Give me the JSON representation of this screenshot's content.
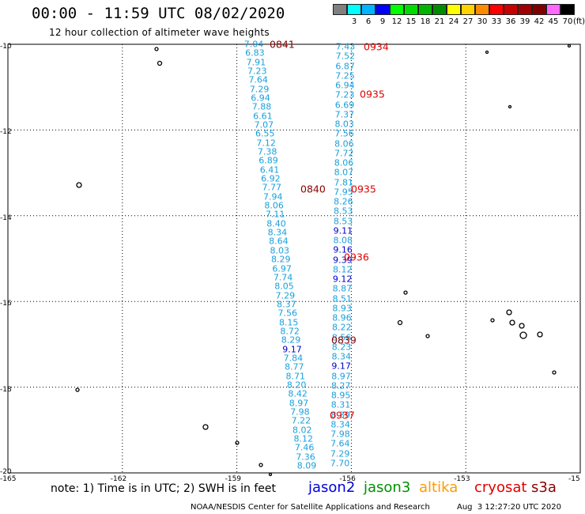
{
  "header": {
    "title": "00:00 - 11:59 UTC 08/02/2020",
    "subtitle": "12 hour collection of altimeter wave heights"
  },
  "color_scale": {
    "unit": "(ft)",
    "bins": [
      {
        "label": "",
        "color": "#808080"
      },
      {
        "label": "3",
        "color": "#00ffff"
      },
      {
        "label": "6",
        "color": "#00b4ff"
      },
      {
        "label": "9",
        "color": "#0000ff"
      },
      {
        "label": "12",
        "color": "#00ff00"
      },
      {
        "label": "15",
        "color": "#00dc00"
      },
      {
        "label": "18",
        "color": "#00b400"
      },
      {
        "label": "21",
        "color": "#008c00"
      },
      {
        "label": "24",
        "color": "#ffff00"
      },
      {
        "label": "27",
        "color": "#ffd200"
      },
      {
        "label": "30",
        "color": "#ff8c00"
      },
      {
        "label": "33",
        "color": "#ff0000"
      },
      {
        "label": "36",
        "color": "#c80000"
      },
      {
        "label": "39",
        "color": "#a00000"
      },
      {
        "label": "42",
        "color": "#800000"
      },
      {
        "label": "45",
        "color": "#ff69ff"
      },
      {
        "label": "70",
        "color": "#000000"
      }
    ]
  },
  "map": {
    "lon_ticks": [
      "-165",
      "-162",
      "-159",
      "-156",
      "-153",
      "-15"
    ],
    "lat_ticks": [
      "-10",
      "-12",
      "-14",
      "-16",
      "-18",
      "-20"
    ],
    "lon_range": [
      -165,
      -150
    ],
    "lat_range": [
      -20,
      -10
    ],
    "gridlines": true
  },
  "tracks": {
    "west": {
      "color": "#1aa0dc",
      "values": [
        "7.04",
        "6.83",
        "7.91",
        "7.23",
        "7.64",
        "7.29",
        "6.94",
        "7.88",
        "6.61",
        "7.07",
        "6.55",
        "7.12",
        "7.38",
        "6.89",
        "6.41",
        "6.92",
        "7.77",
        "7.94",
        "8.06",
        "7.11",
        "8.40",
        "8.34",
        "8.64",
        "8.03",
        "8.29",
        "6.97",
        "7.74",
        "8.05",
        "7.29",
        "8.37",
        "7.56",
        "8.15",
        "8.72",
        "8.29",
        "9.17",
        "7.84",
        "8.77",
        "8.71",
        "8.20",
        "8.42",
        "8.97",
        "7.98",
        "7.22",
        "8.02",
        "8.12",
        "7.46",
        "7.36",
        "8.09"
      ]
    },
    "east": {
      "color": "#1aa0dc",
      "values": [
        "7.43",
        "7.52",
        "6.87",
        "7.25",
        "6.94",
        "7.23",
        "6.69",
        "7.37",
        "8.03",
        "7.56",
        "8.06",
        "7.72",
        "8.06",
        "8.07",
        "7.81",
        "7.95",
        "8.26",
        "8.53",
        "8.53",
        "9.11",
        "8.08",
        "9.16",
        "9.39",
        "8.12",
        "9.12",
        "8.87",
        "8.51",
        "8.93",
        "8.96",
        "8.22",
        "8.56",
        "8.23",
        "8.34",
        "9.17",
        "8.97",
        "8.27",
        "8.95",
        "8.31",
        "8.39",
        "8.34",
        "7.98",
        "7.64",
        "7.29",
        "7.70"
      ]
    }
  },
  "pass_labels": [
    {
      "text": "0841",
      "color": "#8b0000"
    },
    {
      "text": "0934",
      "color": "#e00000"
    },
    {
      "text": "0935",
      "color": "#e00000"
    },
    {
      "text": "0840",
      "color": "#8b0000"
    },
    {
      "text": "0935",
      "color": "#e00000"
    },
    {
      "text": "0936",
      "color": "#e00000"
    },
    {
      "text": "0839",
      "color": "#8b0000"
    },
    {
      "text": "0937",
      "color": "#e00000"
    }
  ],
  "footer": {
    "note": "note: 1) Time is in UTC; 2) SWH is in feet",
    "satellites": [
      {
        "name": "jason2",
        "color": "#0000e0"
      },
      {
        "name": "jason3",
        "color": "#009000"
      },
      {
        "name": "altika",
        "color": "#ff9a00"
      },
      {
        "name": "cryosat",
        "color": "#e00000"
      },
      {
        "name": "s3a",
        "color": "#8b0000"
      }
    ],
    "credit": "NOAA/NESDIS Center for Satellite Applications and Research",
    "timestamp": "Aug  3 12:27:20 UTC 2020"
  }
}
